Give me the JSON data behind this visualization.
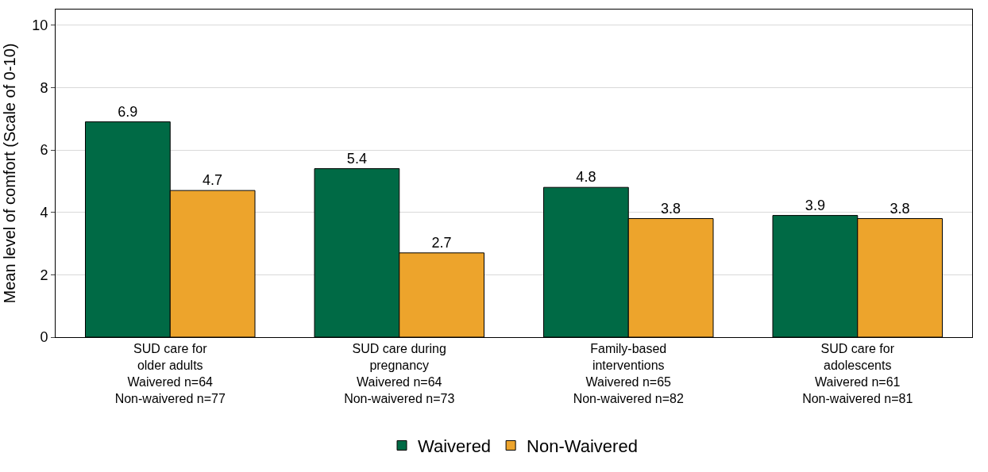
{
  "chart_data": {
    "type": "bar",
    "ylabel": "Mean level of comfort (Scale of 0-10)",
    "categories": [
      "SUD care for\nolder adults\nWaivered n=64\nNon-waivered n=77",
      "SUD care during\npregnancy\nWaivered n=64\nNon-waivered n=73",
      "Family-based\ninterventions\nWaivered n=65\nNon-waivered n=82",
      "SUD care for\nadolescents\nWaivered n=61\nNon-waivered n=81"
    ],
    "series": [
      {
        "name": "Waivered",
        "color": "#006a45",
        "values": [
          6.9,
          5.4,
          4.8,
          3.9
        ]
      },
      {
        "name": "Non-Waivered",
        "color": "#eda42c",
        "values": [
          4.7,
          2.7,
          3.8,
          3.8
        ]
      }
    ],
    "ylim": [
      0,
      10.5
    ],
    "yticks": [
      0,
      2,
      4,
      6,
      8,
      10
    ],
    "grid": "y",
    "legend": "bottom",
    "data_labels": true
  }
}
